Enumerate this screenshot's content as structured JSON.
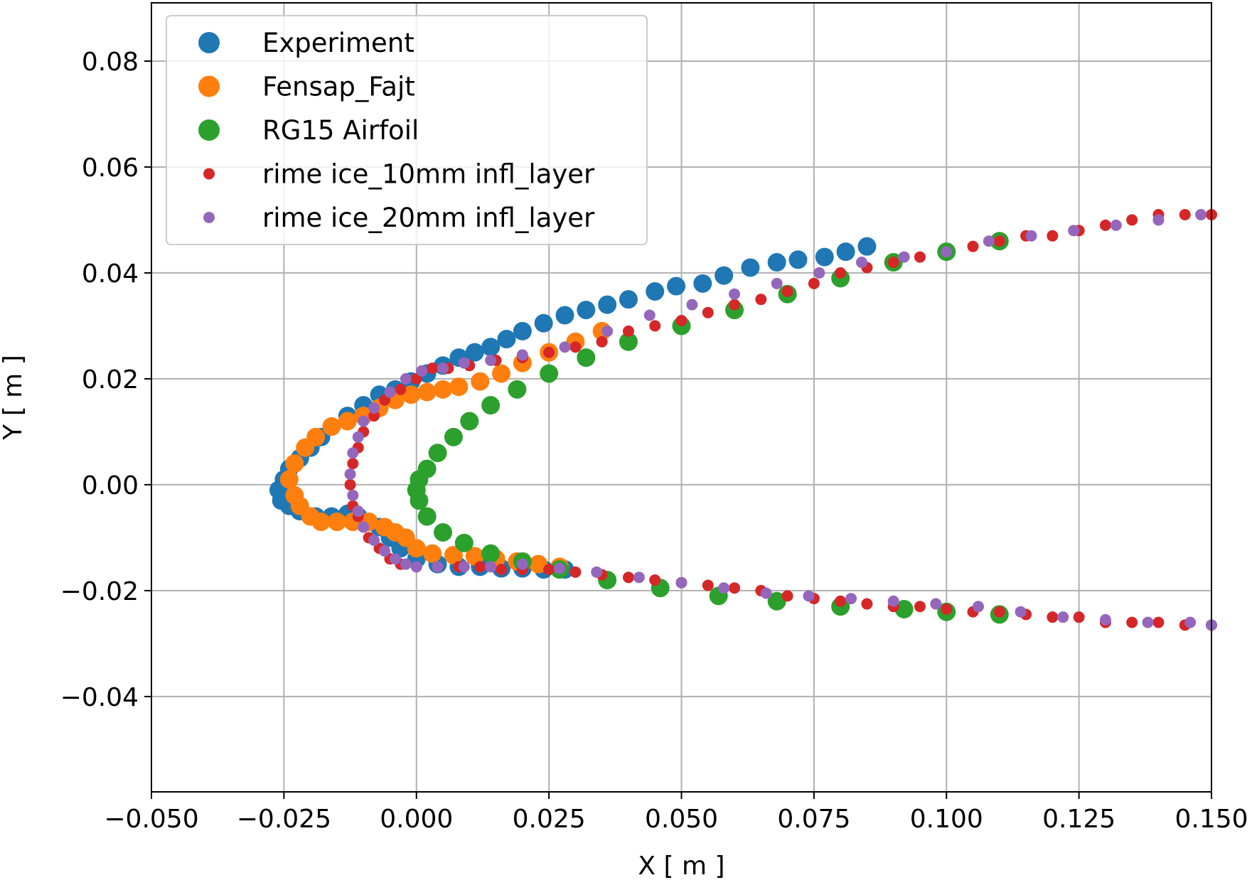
{
  "chart_data": {
    "type": "scatter",
    "title": "",
    "xlabel": "X [ m ]",
    "ylabel": "Y [ m ]",
    "xlim": [
      -0.05,
      0.15
    ],
    "ylim": [
      -0.058,
      0.091
    ],
    "xticks": [
      -0.05,
      -0.025,
      0.0,
      0.025,
      0.05,
      0.075,
      0.1,
      0.125,
      0.15
    ],
    "xtick_labels": [
      "−0.050",
      "−0.025",
      "0.000",
      "0.025",
      "0.050",
      "0.075",
      "0.100",
      "0.125",
      "0.150"
    ],
    "yticks": [
      -0.04,
      -0.02,
      0.0,
      0.02,
      0.04,
      0.06,
      0.08
    ],
    "ytick_labels": [
      "−0.04",
      "−0.02",
      "0.00",
      "0.02",
      "0.04",
      "0.06",
      "0.08"
    ],
    "grid": true,
    "legend_position": "top-left",
    "series": [
      {
        "name": "Experiment",
        "color": "#1f77b4",
        "marker": "large",
        "x": [
          0.085,
          0.081,
          0.077,
          0.072,
          0.068,
          0.063,
          0.058,
          0.054,
          0.049,
          0.045,
          0.04,
          0.036,
          0.032,
          0.028,
          0.024,
          0.02,
          0.017,
          0.014,
          0.011,
          0.008,
          0.005,
          0.002,
          -0.001,
          -0.004,
          -0.007,
          -0.01,
          -0.013,
          -0.016,
          -0.018,
          -0.02,
          -0.022,
          -0.024,
          -0.025,
          -0.026,
          -0.0255,
          -0.024,
          -0.022,
          -0.019,
          -0.016,
          -0.013,
          -0.011,
          -0.009,
          -0.007,
          -0.005,
          -0.003,
          0.0,
          0.004,
          0.008,
          0.012,
          0.016,
          0.02,
          0.024,
          0.028
        ],
        "y": [
          0.045,
          0.044,
          0.043,
          0.0425,
          0.042,
          0.041,
          0.0395,
          0.038,
          0.0375,
          0.0365,
          0.035,
          0.034,
          0.033,
          0.032,
          0.0305,
          0.029,
          0.0275,
          0.026,
          0.025,
          0.024,
          0.0225,
          0.021,
          0.0195,
          0.018,
          0.017,
          0.015,
          0.013,
          0.011,
          0.009,
          0.007,
          0.005,
          0.003,
          0.001,
          -0.001,
          -0.003,
          -0.004,
          -0.005,
          -0.006,
          -0.006,
          -0.0055,
          -0.006,
          -0.007,
          -0.008,
          -0.01,
          -0.012,
          -0.014,
          -0.015,
          -0.0155,
          -0.0155,
          -0.0158,
          -0.0158,
          -0.016,
          -0.016
        ]
      },
      {
        "name": "Fensap_Fajt",
        "color": "#ff7f0e",
        "marker": "large",
        "x": [
          0.035,
          0.03,
          0.025,
          0.02,
          0.016,
          0.012,
          0.008,
          0.005,
          0.002,
          -0.001,
          -0.004,
          -0.007,
          -0.01,
          -0.013,
          -0.016,
          -0.019,
          -0.021,
          -0.023,
          -0.024,
          -0.023,
          -0.022,
          -0.02,
          -0.018,
          -0.015,
          -0.012,
          -0.009,
          -0.006,
          -0.004,
          -0.002,
          0.0,
          0.003,
          0.007,
          0.011,
          0.015,
          0.019,
          0.023,
          0.027
        ],
        "y": [
          0.029,
          0.027,
          0.025,
          0.023,
          0.021,
          0.0195,
          0.0185,
          0.018,
          0.0175,
          0.017,
          0.016,
          0.0145,
          0.013,
          0.012,
          0.011,
          0.009,
          0.007,
          0.004,
          0.001,
          -0.002,
          -0.004,
          -0.006,
          -0.007,
          -0.007,
          -0.007,
          -0.007,
          -0.008,
          -0.009,
          -0.01,
          -0.012,
          -0.013,
          -0.0133,
          -0.0135,
          -0.014,
          -0.0145,
          -0.015,
          -0.0155
        ]
      },
      {
        "name": "RG15 Airfoil",
        "color": "#2ca02c",
        "marker": "large",
        "x": [
          0.11,
          0.1,
          0.09,
          0.08,
          0.07,
          0.06,
          0.05,
          0.04,
          0.032,
          0.025,
          0.019,
          0.014,
          0.01,
          0.007,
          0.004,
          0.002,
          0.0005,
          0.0,
          0.0005,
          0.002,
          0.005,
          0.009,
          0.014,
          0.02,
          0.027,
          0.036,
          0.046,
          0.057,
          0.068,
          0.08,
          0.092,
          0.1,
          0.11
        ],
        "y": [
          0.046,
          0.044,
          0.042,
          0.039,
          0.036,
          0.033,
          0.03,
          0.027,
          0.024,
          0.021,
          0.018,
          0.015,
          0.012,
          0.009,
          0.006,
          0.003,
          0.001,
          -0.001,
          -0.003,
          -0.006,
          -0.009,
          -0.011,
          -0.013,
          -0.0145,
          -0.016,
          -0.018,
          -0.0195,
          -0.021,
          -0.022,
          -0.023,
          -0.0235,
          -0.024,
          -0.0245
        ]
      },
      {
        "name": "rime ice_10mm infl_layer",
        "color": "#d62728",
        "marker": "small",
        "x": [
          0.15,
          0.145,
          0.14,
          0.135,
          0.13,
          0.125,
          0.12,
          0.115,
          0.11,
          0.105,
          0.1,
          0.095,
          0.09,
          0.085,
          0.08,
          0.075,
          0.07,
          0.065,
          0.06,
          0.055,
          0.05,
          0.045,
          0.04,
          0.035,
          0.03,
          0.025,
          0.02,
          0.015,
          0.01,
          0.006,
          0.003,
          0.0,
          -0.003,
          -0.006,
          -0.008,
          -0.01,
          -0.011,
          -0.012,
          -0.0125,
          -0.012,
          -0.011,
          -0.01,
          -0.009,
          -0.007,
          -0.005,
          -0.003,
          0.0,
          0.004,
          0.008,
          0.012,
          0.016,
          0.02,
          0.025,
          0.03,
          0.035,
          0.04,
          0.045,
          0.05,
          0.055,
          0.06,
          0.065,
          0.07,
          0.075,
          0.08,
          0.085,
          0.09,
          0.095,
          0.1,
          0.105,
          0.11,
          0.115,
          0.12,
          0.125,
          0.13,
          0.135,
          0.14,
          0.145,
          0.15
        ],
        "y": [
          0.051,
          0.051,
          0.051,
          0.05,
          0.049,
          0.048,
          0.047,
          0.047,
          0.046,
          0.045,
          0.044,
          0.043,
          0.042,
          0.041,
          0.04,
          0.038,
          0.0365,
          0.035,
          0.034,
          0.0325,
          0.031,
          0.03,
          0.029,
          0.027,
          0.026,
          0.025,
          0.024,
          0.0235,
          0.0225,
          0.022,
          0.022,
          0.02,
          0.018,
          0.016,
          0.013,
          0.01,
          0.007,
          0.004,
          0.0,
          -0.004,
          -0.006,
          -0.008,
          -0.01,
          -0.012,
          -0.014,
          -0.015,
          -0.0155,
          -0.0155,
          -0.0155,
          -0.0155,
          -0.016,
          -0.016,
          -0.016,
          -0.0165,
          -0.017,
          -0.0175,
          -0.018,
          -0.0185,
          -0.019,
          -0.0195,
          -0.02,
          -0.021,
          -0.0215,
          -0.022,
          -0.0225,
          -0.023,
          -0.023,
          -0.0235,
          -0.024,
          -0.024,
          -0.0245,
          -0.025,
          -0.025,
          -0.026,
          -0.026,
          -0.026,
          -0.0265,
          -0.0265
        ]
      },
      {
        "name": "rime ice_20mm infl_layer",
        "color": "#9467bd",
        "marker": "small",
        "x": [
          0.148,
          0.14,
          0.132,
          0.124,
          0.116,
          0.108,
          0.1,
          0.092,
          0.084,
          0.076,
          0.068,
          0.06,
          0.052,
          0.044,
          0.036,
          0.028,
          0.02,
          0.014,
          0.009,
          0.005,
          0.001,
          -0.002,
          -0.005,
          -0.008,
          -0.01,
          -0.011,
          -0.012,
          -0.0125,
          -0.012,
          -0.011,
          -0.01,
          -0.008,
          -0.006,
          -0.004,
          -0.002,
          0.0,
          0.004,
          0.009,
          0.014,
          0.02,
          0.027,
          0.034,
          0.042,
          0.05,
          0.058,
          0.066,
          0.074,
          0.082,
          0.09,
          0.098,
          0.106,
          0.114,
          0.122,
          0.13,
          0.138,
          0.146,
          0.15
        ],
        "y": [
          0.051,
          0.05,
          0.049,
          0.048,
          0.047,
          0.046,
          0.044,
          0.043,
          0.042,
          0.04,
          0.038,
          0.036,
          0.034,
          0.032,
          0.029,
          0.026,
          0.0245,
          0.0235,
          0.023,
          0.022,
          0.0215,
          0.02,
          0.0175,
          0.0145,
          0.012,
          0.009,
          0.006,
          0.002,
          -0.002,
          -0.005,
          -0.008,
          -0.0105,
          -0.0125,
          -0.014,
          -0.015,
          -0.0155,
          -0.0155,
          -0.0155,
          -0.0155,
          -0.015,
          -0.0158,
          -0.0165,
          -0.0175,
          -0.0185,
          -0.0195,
          -0.0205,
          -0.021,
          -0.0215,
          -0.022,
          -0.0225,
          -0.023,
          -0.024,
          -0.025,
          -0.0255,
          -0.026,
          -0.026,
          -0.0265
        ]
      }
    ]
  }
}
